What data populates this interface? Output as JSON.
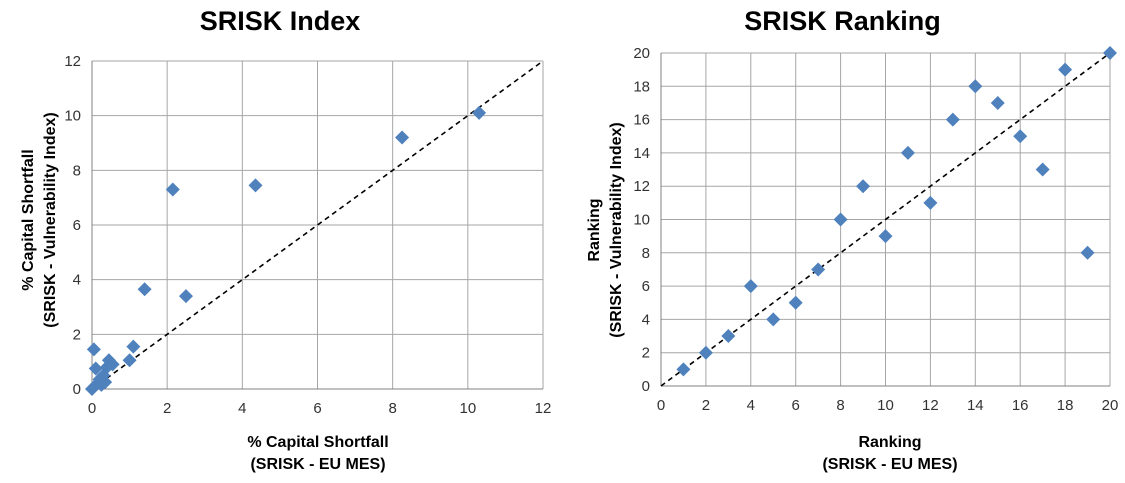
{
  "chart_data": [
    {
      "type": "scatter",
      "title": "SRISK Index",
      "xlabel": [
        "% Capital Shortfall",
        "(SRISK - EU MES)"
      ],
      "ylabel": [
        "% Capital Shortfall",
        "(SRISK - Vulnerability Index)"
      ],
      "xlim": [
        0,
        12
      ],
      "ylim": [
        0,
        12
      ],
      "xticks": [
        0,
        2,
        4,
        6,
        8,
        10,
        12
      ],
      "yticks": [
        0,
        2,
        4,
        6,
        8,
        10,
        12
      ],
      "grid": true,
      "diagonal_reference_line": true,
      "marker_color": "#4F81BD",
      "series": [
        {
          "points": [
            [
              0.0,
              0.0
            ],
            [
              0.05,
              1.45
            ],
            [
              0.1,
              0.75
            ],
            [
              0.15,
              0.2
            ],
            [
              0.2,
              0.35
            ],
            [
              0.25,
              0.15
            ],
            [
              0.3,
              0.5
            ],
            [
              0.35,
              0.25
            ],
            [
              0.4,
              0.8
            ],
            [
              0.45,
              1.05
            ],
            [
              0.55,
              0.9
            ],
            [
              1.0,
              1.05
            ],
            [
              1.1,
              1.55
            ],
            [
              1.4,
              3.65
            ],
            [
              2.15,
              7.3
            ],
            [
              2.5,
              3.4
            ],
            [
              4.35,
              7.45
            ],
            [
              8.25,
              9.2
            ],
            [
              10.3,
              10.1
            ]
          ]
        }
      ]
    },
    {
      "type": "scatter",
      "title": "SRISK Ranking",
      "xlabel": [
        "Ranking",
        "(SRISK - EU MES)"
      ],
      "ylabel": [
        "Ranking",
        "(SRISK - Vulnerability Index)"
      ],
      "xlim": [
        0,
        20
      ],
      "ylim": [
        0,
        20
      ],
      "xticks": [
        0,
        2,
        4,
        6,
        8,
        10,
        12,
        14,
        16,
        18,
        20
      ],
      "yticks": [
        0,
        2,
        4,
        6,
        8,
        10,
        12,
        14,
        16,
        18,
        20
      ],
      "grid": true,
      "diagonal_reference_line": true,
      "marker_color": "#4F81BD",
      "series": [
        {
          "points": [
            [
              1,
              1
            ],
            [
              2,
              2
            ],
            [
              3,
              3
            ],
            [
              4,
              6
            ],
            [
              5,
              4
            ],
            [
              6,
              5
            ],
            [
              7,
              7
            ],
            [
              8,
              10
            ],
            [
              9,
              12
            ],
            [
              10,
              9
            ],
            [
              11,
              14
            ],
            [
              12,
              11
            ],
            [
              13,
              16
            ],
            [
              14,
              18
            ],
            [
              15,
              17
            ],
            [
              16,
              15
            ],
            [
              17,
              13
            ],
            [
              18,
              19
            ],
            [
              19,
              8
            ],
            [
              20,
              20
            ]
          ]
        }
      ]
    }
  ]
}
